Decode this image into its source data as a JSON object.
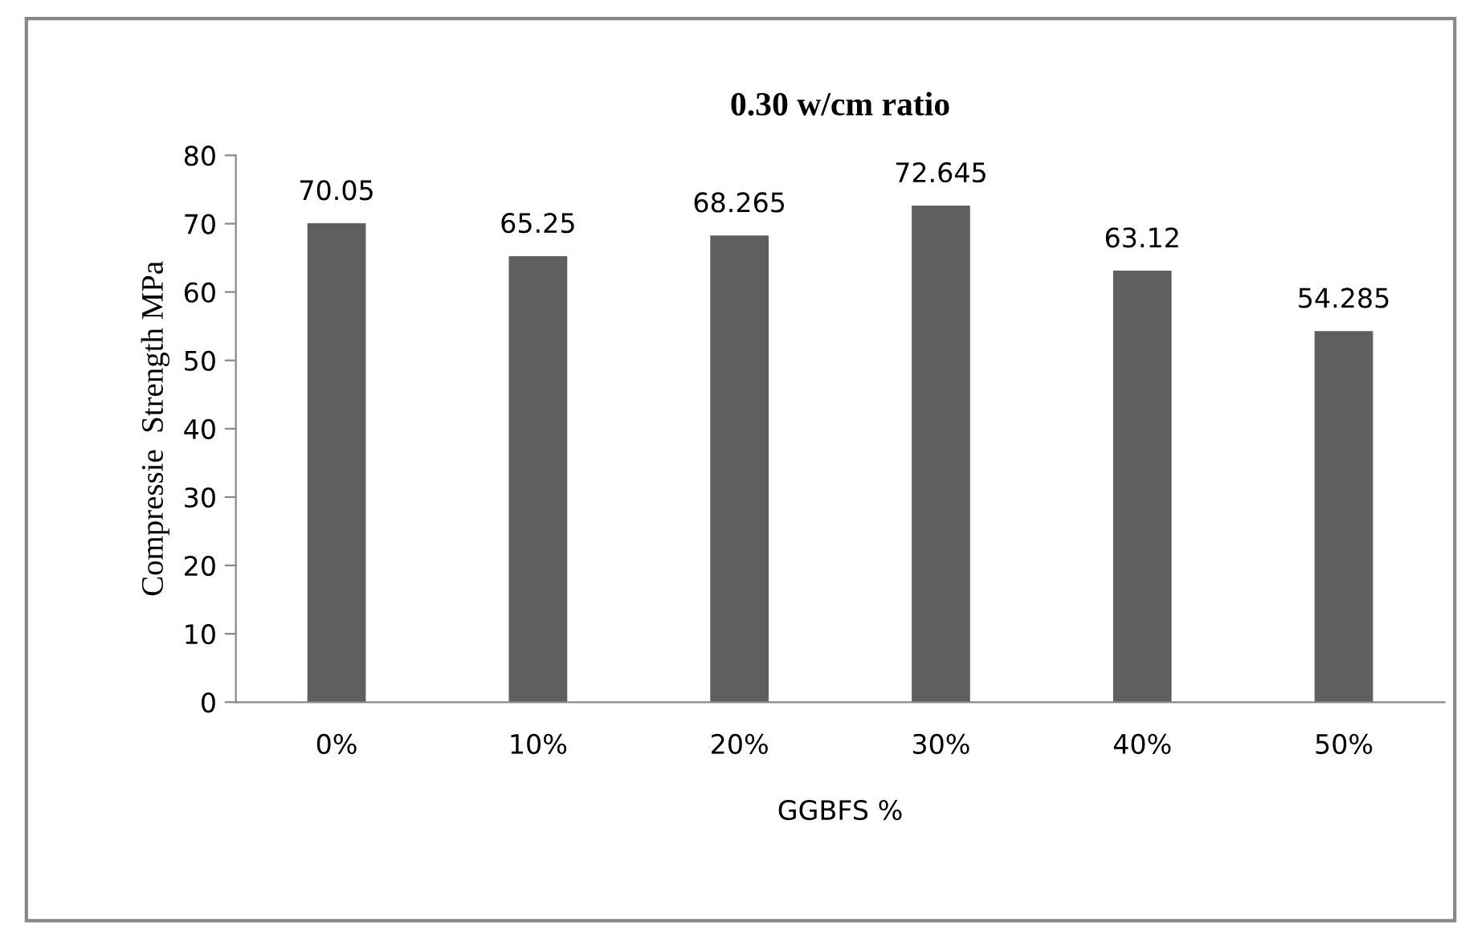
{
  "chart_data": {
    "type": "bar",
    "title": "0.30 w/cm ratio",
    "xlabel": "GGBFS %",
    "ylabel": "Compressie  Strength MPa",
    "categories": [
      "0%",
      "10%",
      "20%",
      "30%",
      "40%",
      "50%"
    ],
    "values": [
      70.05,
      65.25,
      68.265,
      72.645,
      63.12,
      54.285
    ],
    "color": "#5f5f5f",
    "ylim": [
      0,
      80
    ],
    "yticks": [
      0,
      10,
      20,
      30,
      40,
      50,
      60,
      70,
      80
    ],
    "grid": false,
    "data_labels": true
  }
}
